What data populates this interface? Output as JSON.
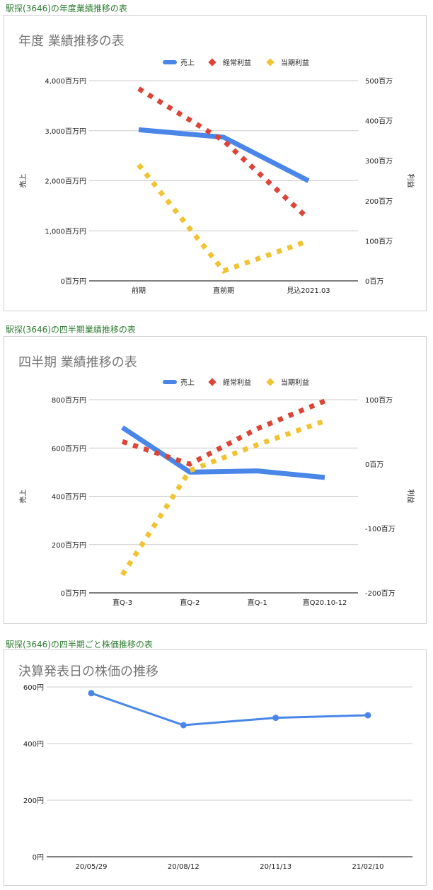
{
  "headings": {
    "annual": "駅探(3646)の年度業績推移の表",
    "quarterly": "駅探(3646)の四半期業績推移の表",
    "stock": "駅探(3646)の四半期ごと株価推移の表"
  },
  "chart_data": [
    {
      "type": "line",
      "title": "年度 業績推移の表",
      "categories": [
        "前期",
        "直前期",
        "見込2021.03"
      ],
      "ylabel_left": "売上",
      "ylabel_right": "利益",
      "left_axis": {
        "min": 0,
        "max": 4000,
        "ticks": [
          0,
          1000,
          2000,
          3000,
          4000
        ],
        "tick_labels": [
          "0百万円",
          "1,000百万円",
          "2,000百万円",
          "3,000百万円",
          "4,000百万円"
        ]
      },
      "right_axis": {
        "min": 0,
        "max": 500,
        "ticks": [
          0,
          100,
          200,
          300,
          400,
          500
        ],
        "tick_labels": [
          "0百万",
          "100百万",
          "200百万",
          "300百万",
          "400百万",
          "500百万"
        ]
      },
      "grid": true,
      "legend_position": "top",
      "series": [
        {
          "name": "売上",
          "axis": "left",
          "style": "solid",
          "color": "#4a86e8",
          "values": [
            3020,
            2870,
            2000
          ]
        },
        {
          "name": "経常利益",
          "axis": "right",
          "style": "dotted",
          "color": "#db4437",
          "values": [
            480,
            350,
            155
          ]
        },
        {
          "name": "当期利益",
          "axis": "right",
          "style": "dotted",
          "color": "#f1c232",
          "values": [
            290,
            25,
            100
          ]
        }
      ]
    },
    {
      "type": "line",
      "title": "四半期 業績推移の表",
      "categories": [
        "直Q-3",
        "直Q-2",
        "直Q-1",
        "直Q20.10-12"
      ],
      "ylabel_left": "売上",
      "ylabel_right": "利益",
      "left_axis": {
        "min": 0,
        "max": 800,
        "ticks": [
          0,
          200,
          400,
          600,
          800
        ],
        "tick_labels": [
          "0百万円",
          "200百万円",
          "400百万円",
          "600百万円",
          "800百万円"
        ]
      },
      "right_axis": {
        "min": -200,
        "max": 100,
        "ticks": [
          -200,
          -100,
          0,
          100
        ],
        "tick_labels": [
          "-200百万",
          "-100百万",
          "0百万",
          "100百万"
        ]
      },
      "grid": true,
      "legend_position": "top",
      "series": [
        {
          "name": "売上",
          "axis": "left",
          "style": "solid",
          "color": "#4a86e8",
          "values": [
            685,
            500,
            505,
            478
          ]
        },
        {
          "name": "経常利益",
          "axis": "right",
          "style": "dotted",
          "color": "#db4437",
          "values": [
            35,
            0,
            55,
            98
          ]
        },
        {
          "name": "当期利益",
          "axis": "right",
          "style": "dotted",
          "color": "#f1c232",
          "values": [
            -172,
            -10,
            30,
            67
          ]
        }
      ]
    },
    {
      "type": "line",
      "title": "決算発表日の株価の推移",
      "categories": [
        "20/05/29",
        "20/08/12",
        "20/11/13",
        "21/02/10"
      ],
      "left_axis": {
        "min": 0,
        "max": 600,
        "ticks": [
          0,
          200,
          400,
          600
        ],
        "tick_labels": [
          "0円",
          "200円",
          "400円",
          "600円"
        ]
      },
      "grid": true,
      "series": [
        {
          "axis": "left",
          "style": "solid-markers",
          "color": "#4a86e8",
          "values": [
            578,
            465,
            491,
            500
          ]
        }
      ]
    }
  ]
}
